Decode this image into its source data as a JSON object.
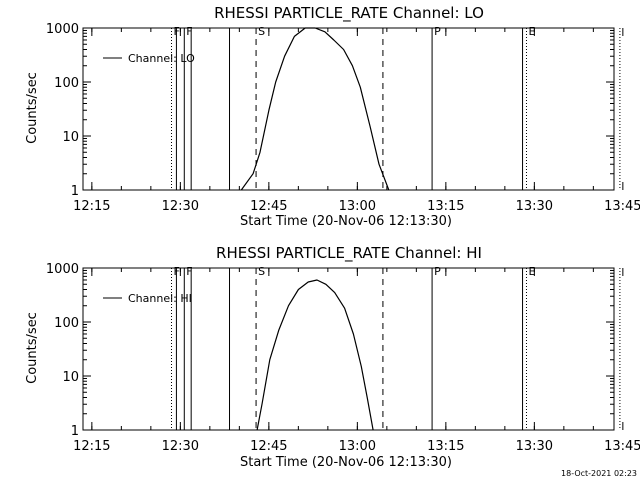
{
  "chart_data": [
    {
      "type": "line",
      "title": "RHESSI PARTICLE_RATE Channel: LO",
      "xlabel": "Start Time (20-Nov-06 12:13:30)",
      "ylabel": "Counts/sec",
      "y_scale": "log",
      "ylim": [
        1,
        1000
      ],
      "y_ticks": [
        "1",
        "10",
        "100",
        "1000"
      ],
      "x_start": "12:13:30",
      "x_ticks": [
        "12:15",
        "12:30",
        "12:45",
        "13:00",
        "13:15",
        "13:30",
        "13:45"
      ],
      "grid": false,
      "legend": {
        "placement": "top-left",
        "entries": [
          "Channel: LO"
        ]
      },
      "markers": [
        {
          "label": "F",
          "time": "12:28:30",
          "style": "dotted"
        },
        {
          "label": "",
          "time": "12:29:20",
          "style": "solid"
        },
        {
          "label": "F",
          "time": "12:30:40",
          "style": "solid"
        },
        {
          "label": "",
          "time": "12:31:50",
          "style": "solid"
        },
        {
          "label": "",
          "time": "12:38:20",
          "style": "solid"
        },
        {
          "label": "S",
          "time": "12:42:50",
          "style": "dashed"
        },
        {
          "label": "",
          "time": "13:04:20",
          "style": "dashed"
        },
        {
          "label": "P",
          "time": "13:12:40",
          "style": "solid"
        },
        {
          "label": "",
          "time": "13:28:00",
          "style": "solid"
        },
        {
          "label": "E",
          "time": "13:28:40",
          "style": "dotted"
        },
        {
          "label": "",
          "time": "13:44:30",
          "style": "dotted"
        }
      ],
      "series": [
        {
          "name": "Channel: LO",
          "x": [
            "12:40:20",
            "12:42:20",
            "12:43:30",
            "12:45:00",
            "12:46:10",
            "12:47:40",
            "12:49:20",
            "12:51:10",
            "12:52:50",
            "12:54:30",
            "12:56:00",
            "12:57:40",
            "12:59:10",
            "13:00:30",
            "13:02:10",
            "13:03:40",
            "13:05:20"
          ],
          "y": [
            1,
            2,
            5,
            30,
            100,
            300,
            700,
            1000,
            1000,
            850,
            600,
            400,
            200,
            80,
            15,
            3,
            1
          ]
        }
      ]
    },
    {
      "type": "line",
      "title": "RHESSI PARTICLE_RATE Channel: HI",
      "xlabel": "Start Time (20-Nov-06 12:13:30)",
      "ylabel": "Counts/sec",
      "y_scale": "log",
      "ylim": [
        1,
        1000
      ],
      "y_ticks": [
        "1",
        "10",
        "100",
        "1000"
      ],
      "x_start": "12:13:30",
      "x_ticks": [
        "12:15",
        "12:30",
        "12:45",
        "13:00",
        "13:15",
        "13:30",
        "13:45"
      ],
      "grid": false,
      "legend": {
        "placement": "top-left",
        "entries": [
          "Channel: HI"
        ]
      },
      "markers": [
        {
          "label": "F",
          "time": "12:28:30",
          "style": "dotted"
        },
        {
          "label": "",
          "time": "12:29:20",
          "style": "solid"
        },
        {
          "label": "F",
          "time": "12:30:40",
          "style": "solid"
        },
        {
          "label": "",
          "time": "12:31:50",
          "style": "solid"
        },
        {
          "label": "",
          "time": "12:38:20",
          "style": "solid"
        },
        {
          "label": "S",
          "time": "12:42:50",
          "style": "dashed"
        },
        {
          "label": "",
          "time": "13:04:20",
          "style": "dashed"
        },
        {
          "label": "P",
          "time": "13:12:40",
          "style": "solid"
        },
        {
          "label": "",
          "time": "13:28:00",
          "style": "solid"
        },
        {
          "label": "E",
          "time": "13:28:40",
          "style": "dotted"
        },
        {
          "label": "",
          "time": "13:44:30",
          "style": "dotted"
        }
      ],
      "series": [
        {
          "name": "Channel: HI",
          "x": [
            "12:43:00",
            "12:43:50",
            "12:45:10",
            "12:46:40",
            "12:48:20",
            "12:50:00",
            "12:51:40",
            "12:53:10",
            "12:54:40",
            "12:56:10",
            "12:57:50",
            "12:59:20",
            "13:00:40",
            "13:01:40",
            "13:02:40"
          ],
          "y": [
            1,
            3,
            20,
            70,
            200,
            400,
            550,
            600,
            500,
            350,
            180,
            60,
            15,
            4,
            1
          ]
        }
      ]
    }
  ],
  "footer": {
    "timestamp": "18-Oct-2021 02:23"
  }
}
